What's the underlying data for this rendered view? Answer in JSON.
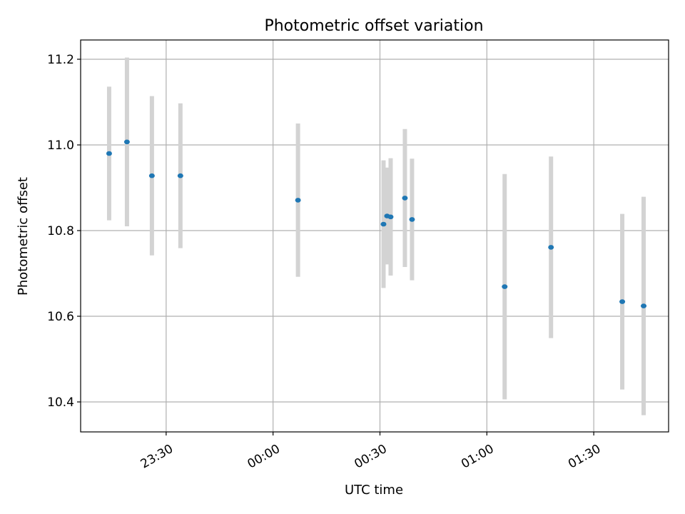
{
  "chart_data": {
    "type": "scatter",
    "title": "Photometric offset variation",
    "xlabel": "UTC time",
    "ylabel": "Photometric offset",
    "x_tick_labels": [
      "23:30",
      "00:00",
      "00:30",
      "01:00",
      "01:30"
    ],
    "y_tick_labels": [
      "10.4",
      "10.6",
      "10.8",
      "11.0",
      "11.2"
    ],
    "x_ticks": [
      "23:30",
      "00:00",
      "00:30",
      "01:00",
      "01:30"
    ],
    "y_ticks": [
      10.4,
      10.6,
      10.8,
      11.0,
      11.2
    ],
    "xlim": [
      "23:06",
      "01:51"
    ],
    "ylim": [
      10.33,
      11.245
    ],
    "grid": true,
    "colors": {
      "points": "#1f77b4",
      "errorbars": "#d3d3d3",
      "grid": "#b0b0b0"
    },
    "points": [
      {
        "t": "23:14",
        "y": 10.98,
        "err": 0.156
      },
      {
        "t": "23:19",
        "y": 11.007,
        "err": 0.197
      },
      {
        "t": "23:26",
        "y": 10.928,
        "err": 0.186
      },
      {
        "t": "23:34",
        "y": 10.928,
        "err": 0.169
      },
      {
        "t": "00:07",
        "y": 10.871,
        "err": 0.179
      },
      {
        "t": "00:31",
        "y": 10.815,
        "err": 0.149
      },
      {
        "t": "00:32",
        "y": 10.834,
        "err": 0.113
      },
      {
        "t": "00:33",
        "y": 10.832,
        "err": 0.137
      },
      {
        "t": "00:37",
        "y": 10.876,
        "err": 0.161
      },
      {
        "t": "00:39",
        "y": 10.826,
        "err": 0.142
      },
      {
        "t": "01:05",
        "y": 10.669,
        "err": 0.263
      },
      {
        "t": "01:18",
        "y": 10.761,
        "err": 0.212
      },
      {
        "t": "01:38",
        "y": 10.634,
        "err": 0.205
      },
      {
        "t": "01:44",
        "y": 10.624,
        "err": 0.255
      }
    ]
  }
}
